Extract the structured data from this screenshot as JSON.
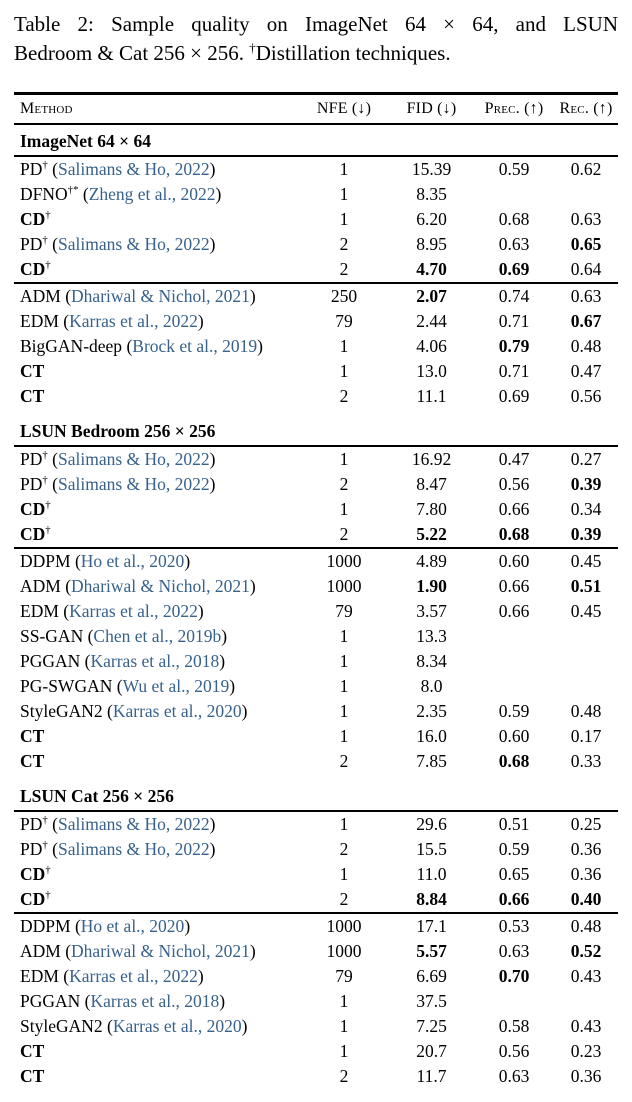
{
  "caption": {
    "line1": "Table 2: Sample quality on ImageNet 64 × 64, and LSUN",
    "line2_pre": "Bedroom & Cat 256 × 256. ",
    "dagger": "†",
    "line2_post": "Distillation techniques."
  },
  "header": {
    "columns": [
      "Method",
      "NFE (↓)",
      "FID (↓)",
      "Prec. (↑)",
      "Rec. (↑)"
    ]
  },
  "colors": {
    "citation": "#38618c",
    "text": "#000000",
    "rule": "#000000",
    "background": "#ffffff"
  },
  "sections": [
    {
      "title": "ImageNet 64 × 64",
      "groups": [
        {
          "rows": [
            {
              "method": {
                "name": "PD",
                "bold": false,
                "sup": "†",
                "cite": "Salimans & Ho, 2022"
              },
              "values": {
                "nfe": "1",
                "fid": "15.39",
                "prec": "0.59",
                "rec": "0.62"
              },
              "bold_values": []
            },
            {
              "method": {
                "name": "DFNO",
                "bold": false,
                "sup": "†*",
                "cite": "Zheng et al., 2022"
              },
              "values": {
                "nfe": "1",
                "fid": "8.35",
                "prec": "",
                "rec": ""
              },
              "bold_values": []
            },
            {
              "method": {
                "name": "CD",
                "bold": true,
                "sup": "†",
                "cite": null
              },
              "values": {
                "nfe": "1",
                "fid": "6.20",
                "prec": "0.68",
                "rec": "0.63"
              },
              "bold_values": []
            },
            {
              "method": {
                "name": "PD",
                "bold": false,
                "sup": "†",
                "cite": "Salimans & Ho, 2022"
              },
              "values": {
                "nfe": "2",
                "fid": "8.95",
                "prec": "0.63",
                "rec": "0.65"
              },
              "bold_values": [
                "rec"
              ]
            },
            {
              "method": {
                "name": "CD",
                "bold": true,
                "sup": "†",
                "cite": null
              },
              "values": {
                "nfe": "2",
                "fid": "4.70",
                "prec": "0.69",
                "rec": "0.64"
              },
              "bold_values": [
                "fid",
                "prec"
              ]
            }
          ]
        },
        {
          "rows": [
            {
              "method": {
                "name": "ADM",
                "bold": false,
                "sup": null,
                "cite": "Dhariwal & Nichol, 2021"
              },
              "values": {
                "nfe": "250",
                "fid": "2.07",
                "prec": "0.74",
                "rec": "0.63"
              },
              "bold_values": [
                "fid"
              ]
            },
            {
              "method": {
                "name": "EDM",
                "bold": false,
                "sup": null,
                "cite": "Karras et al., 2022"
              },
              "values": {
                "nfe": "79",
                "fid": "2.44",
                "prec": "0.71",
                "rec": "0.67"
              },
              "bold_values": [
                "rec"
              ]
            },
            {
              "method": {
                "name": "BigGAN-deep",
                "bold": false,
                "sup": null,
                "cite": "Brock et al., 2019"
              },
              "values": {
                "nfe": "1",
                "fid": "4.06",
                "prec": "0.79",
                "rec": "0.48"
              },
              "bold_values": [
                "prec"
              ]
            },
            {
              "method": {
                "name": "CT",
                "bold": true,
                "sup": null,
                "cite": null
              },
              "values": {
                "nfe": "1",
                "fid": "13.0",
                "prec": "0.71",
                "rec": "0.47"
              },
              "bold_values": []
            },
            {
              "method": {
                "name": "CT",
                "bold": true,
                "sup": null,
                "cite": null
              },
              "values": {
                "nfe": "2",
                "fid": "11.1",
                "prec": "0.69",
                "rec": "0.56"
              },
              "bold_values": []
            }
          ]
        }
      ]
    },
    {
      "title": "LSUN Bedroom 256 × 256",
      "groups": [
        {
          "rows": [
            {
              "method": {
                "name": "PD",
                "bold": false,
                "sup": "†",
                "cite": "Salimans & Ho, 2022"
              },
              "values": {
                "nfe": "1",
                "fid": "16.92",
                "prec": "0.47",
                "rec": "0.27"
              },
              "bold_values": []
            },
            {
              "method": {
                "name": "PD",
                "bold": false,
                "sup": "†",
                "cite": "Salimans & Ho, 2022"
              },
              "values": {
                "nfe": "2",
                "fid": "8.47",
                "prec": "0.56",
                "rec": "0.39"
              },
              "bold_values": [
                "rec"
              ]
            },
            {
              "method": {
                "name": "CD",
                "bold": true,
                "sup": "†",
                "cite": null
              },
              "values": {
                "nfe": "1",
                "fid": "7.80",
                "prec": "0.66",
                "rec": "0.34"
              },
              "bold_values": []
            },
            {
              "method": {
                "name": "CD",
                "bold": true,
                "sup": "†",
                "cite": null
              },
              "values": {
                "nfe": "2",
                "fid": "5.22",
                "prec": "0.68",
                "rec": "0.39"
              },
              "bold_values": [
                "fid",
                "prec",
                "rec"
              ]
            }
          ]
        },
        {
          "rows": [
            {
              "method": {
                "name": "DDPM",
                "bold": false,
                "sup": null,
                "cite": "Ho et al., 2020"
              },
              "values": {
                "nfe": "1000",
                "fid": "4.89",
                "prec": "0.60",
                "rec": "0.45"
              },
              "bold_values": []
            },
            {
              "method": {
                "name": "ADM",
                "bold": false,
                "sup": null,
                "cite": "Dhariwal & Nichol, 2021"
              },
              "values": {
                "nfe": "1000",
                "fid": "1.90",
                "prec": "0.66",
                "rec": "0.51"
              },
              "bold_values": [
                "fid",
                "rec"
              ]
            },
            {
              "method": {
                "name": "EDM",
                "bold": false,
                "sup": null,
                "cite": "Karras et al., 2022"
              },
              "values": {
                "nfe": "79",
                "fid": "3.57",
                "prec": "0.66",
                "rec": "0.45"
              },
              "bold_values": []
            },
            {
              "method": {
                "name": "SS-GAN",
                "bold": false,
                "sup": null,
                "cite": "Chen et al., 2019b"
              },
              "values": {
                "nfe": "1",
                "fid": "13.3",
                "prec": "",
                "rec": ""
              },
              "bold_values": []
            },
            {
              "method": {
                "name": "PGGAN",
                "bold": false,
                "sup": null,
                "cite": "Karras et al., 2018"
              },
              "values": {
                "nfe": "1",
                "fid": "8.34",
                "prec": "",
                "rec": ""
              },
              "bold_values": []
            },
            {
              "method": {
                "name": "PG-SWGAN",
                "bold": false,
                "sup": null,
                "cite": "Wu et al., 2019"
              },
              "values": {
                "nfe": "1",
                "fid": "8.0",
                "prec": "",
                "rec": ""
              },
              "bold_values": []
            },
            {
              "method": {
                "name": "StyleGAN2",
                "bold": false,
                "sup": null,
                "cite": "Karras et al., 2020"
              },
              "values": {
                "nfe": "1",
                "fid": "2.35",
                "prec": "0.59",
                "rec": "0.48"
              },
              "bold_values": []
            },
            {
              "method": {
                "name": "CT",
                "bold": true,
                "sup": null,
                "cite": null
              },
              "values": {
                "nfe": "1",
                "fid": "16.0",
                "prec": "0.60",
                "rec": "0.17"
              },
              "bold_values": []
            },
            {
              "method": {
                "name": "CT",
                "bold": true,
                "sup": null,
                "cite": null
              },
              "values": {
                "nfe": "2",
                "fid": "7.85",
                "prec": "0.68",
                "rec": "0.33"
              },
              "bold_values": [
                "prec"
              ]
            }
          ]
        }
      ]
    },
    {
      "title": "LSUN Cat 256 × 256",
      "groups": [
        {
          "rows": [
            {
              "method": {
                "name": "PD",
                "bold": false,
                "sup": "†",
                "cite": "Salimans & Ho, 2022"
              },
              "values": {
                "nfe": "1",
                "fid": "29.6",
                "prec": "0.51",
                "rec": "0.25"
              },
              "bold_values": []
            },
            {
              "method": {
                "name": "PD",
                "bold": false,
                "sup": "†",
                "cite": "Salimans & Ho, 2022"
              },
              "values": {
                "nfe": "2",
                "fid": "15.5",
                "prec": "0.59",
                "rec": "0.36"
              },
              "bold_values": []
            },
            {
              "method": {
                "name": "CD",
                "bold": true,
                "sup": "†",
                "cite": null
              },
              "values": {
                "nfe": "1",
                "fid": "11.0",
                "prec": "0.65",
                "rec": "0.36"
              },
              "bold_values": []
            },
            {
              "method": {
                "name": "CD",
                "bold": true,
                "sup": "†",
                "cite": null
              },
              "values": {
                "nfe": "2",
                "fid": "8.84",
                "prec": "0.66",
                "rec": "0.40"
              },
              "bold_values": [
                "fid",
                "prec",
                "rec"
              ]
            }
          ]
        },
        {
          "rows": [
            {
              "method": {
                "name": "DDPM",
                "bold": false,
                "sup": null,
                "cite": "Ho et al., 2020"
              },
              "values": {
                "nfe": "1000",
                "fid": "17.1",
                "prec": "0.53",
                "rec": "0.48"
              },
              "bold_values": []
            },
            {
              "method": {
                "name": "ADM",
                "bold": false,
                "sup": null,
                "cite": "Dhariwal & Nichol, 2021"
              },
              "values": {
                "nfe": "1000",
                "fid": "5.57",
                "prec": "0.63",
                "rec": "0.52"
              },
              "bold_values": [
                "fid",
                "rec"
              ]
            },
            {
              "method": {
                "name": "EDM",
                "bold": false,
                "sup": null,
                "cite": "Karras et al., 2022"
              },
              "values": {
                "nfe": "79",
                "fid": "6.69",
                "prec": "0.70",
                "rec": "0.43"
              },
              "bold_values": [
                "prec"
              ]
            },
            {
              "method": {
                "name": "PGGAN",
                "bold": false,
                "sup": null,
                "cite": "Karras et al., 2018"
              },
              "values": {
                "nfe": "1",
                "fid": "37.5",
                "prec": "",
                "rec": ""
              },
              "bold_values": []
            },
            {
              "method": {
                "name": "StyleGAN2",
                "bold": false,
                "sup": null,
                "cite": "Karras et al., 2020"
              },
              "values": {
                "nfe": "1",
                "fid": "7.25",
                "prec": "0.58",
                "rec": "0.43"
              },
              "bold_values": []
            },
            {
              "method": {
                "name": "CT",
                "bold": true,
                "sup": null,
                "cite": null
              },
              "values": {
                "nfe": "1",
                "fid": "20.7",
                "prec": "0.56",
                "rec": "0.23"
              },
              "bold_values": []
            },
            {
              "method": {
                "name": "CT",
                "bold": true,
                "sup": null,
                "cite": null
              },
              "values": {
                "nfe": "2",
                "fid": "11.7",
                "prec": "0.63",
                "rec": "0.36"
              },
              "bold_values": []
            }
          ]
        }
      ]
    }
  ]
}
